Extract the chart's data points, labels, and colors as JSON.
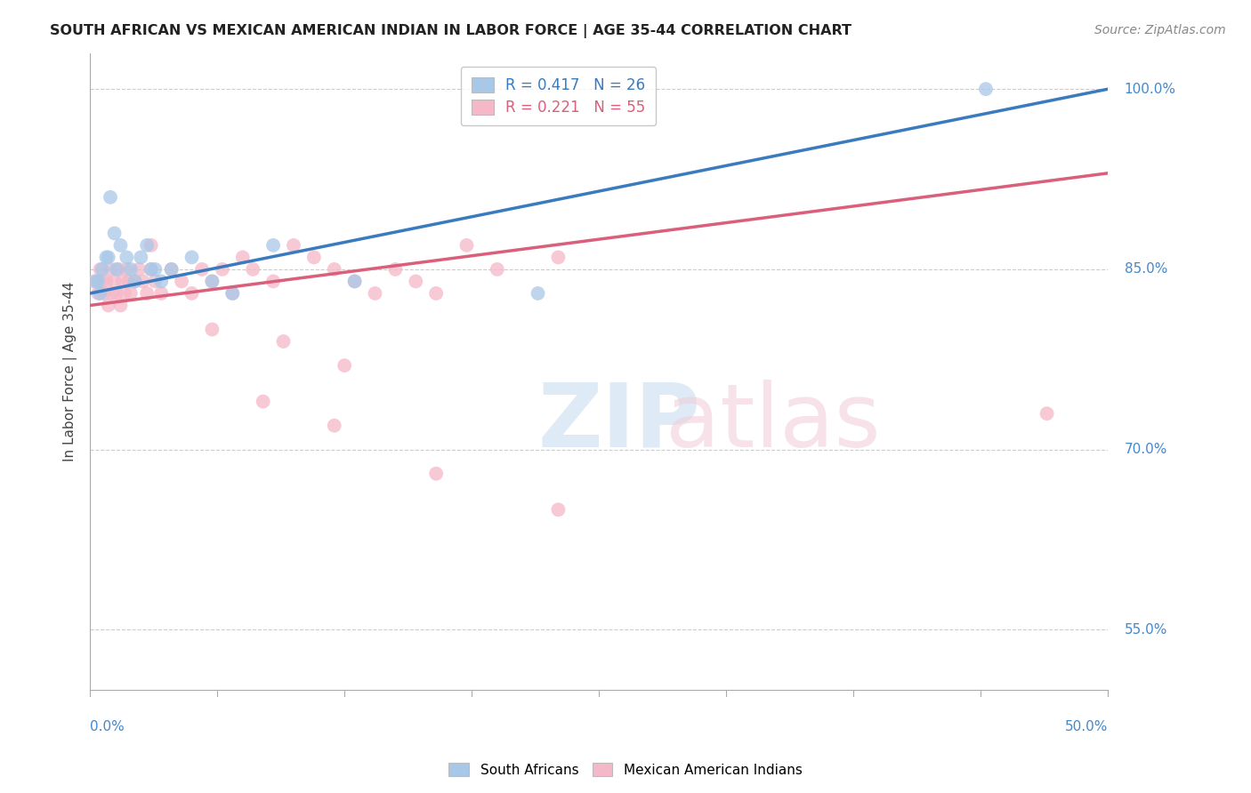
{
  "title": "SOUTH AFRICAN VS MEXICAN AMERICAN INDIAN IN LABOR FORCE | AGE 35-44 CORRELATION CHART",
  "source": "Source: ZipAtlas.com",
  "ylabel": "In Labor Force | Age 35-44",
  "xmin": 0.0,
  "xmax": 50.0,
  "ymin": 50.0,
  "ymax": 103.0,
  "legend_blue": "R = 0.417   N = 26",
  "legend_pink": "R = 0.221   N = 55",
  "blue_color": "#a8c8e8",
  "pink_color": "#f4b8c8",
  "blue_line_color": "#3a7abf",
  "pink_line_color": "#d95f7a",
  "ytick_vals": [
    55,
    70,
    85,
    100
  ],
  "ytick_labels": [
    "55.0%",
    "70.0%",
    "85.0%",
    "100.0%"
  ],
  "sa_x": [
    0.3,
    0.5,
    0.6,
    0.8,
    1.0,
    1.2,
    1.5,
    1.8,
    2.0,
    2.2,
    2.5,
    3.0,
    3.5,
    4.0,
    5.0,
    6.0,
    7.0,
    9.0,
    13.0,
    22.0,
    44.0,
    0.4,
    0.9,
    1.3,
    2.8,
    3.2
  ],
  "sa_y": [
    84,
    83,
    85,
    86,
    91,
    88,
    87,
    86,
    85,
    84,
    86,
    85,
    84,
    85,
    86,
    84,
    83,
    87,
    84,
    83,
    100,
    84,
    86,
    85,
    87,
    85
  ],
  "mex_x": [
    0.2,
    0.4,
    0.5,
    0.6,
    0.7,
    0.8,
    0.9,
    1.0,
    1.1,
    1.2,
    1.3,
    1.4,
    1.5,
    1.6,
    1.7,
    1.8,
    1.9,
    2.0,
    2.2,
    2.4,
    2.6,
    2.8,
    3.0,
    3.2,
    3.5,
    4.0,
    4.5,
    5.0,
    5.5,
    6.0,
    6.5,
    7.0,
    7.5,
    8.0,
    9.0,
    10.0,
    11.0,
    12.0,
    13.0,
    14.0,
    15.0,
    16.0,
    17.0,
    18.5,
    20.0,
    23.0,
    9.5,
    12.5,
    3.0,
    6.0,
    8.5,
    12.0,
    17.0,
    23.0,
    47.0
  ],
  "mex_y": [
    84,
    83,
    85,
    84,
    83,
    84,
    82,
    85,
    83,
    84,
    83,
    85,
    82,
    84,
    83,
    85,
    84,
    83,
    84,
    85,
    84,
    83,
    85,
    84,
    83,
    85,
    84,
    83,
    85,
    84,
    85,
    83,
    86,
    85,
    84,
    87,
    86,
    85,
    84,
    83,
    85,
    84,
    83,
    87,
    85,
    86,
    79,
    77,
    87,
    80,
    74,
    72,
    68,
    65,
    73
  ],
  "blue_trend_x0": 0.0,
  "blue_trend_y0": 83.0,
  "blue_trend_x1": 50.0,
  "blue_trend_y1": 100.0,
  "pink_trend_x0": 0.0,
  "pink_trend_y0": 82.0,
  "pink_trend_x1": 50.0,
  "pink_trend_y1": 93.0
}
